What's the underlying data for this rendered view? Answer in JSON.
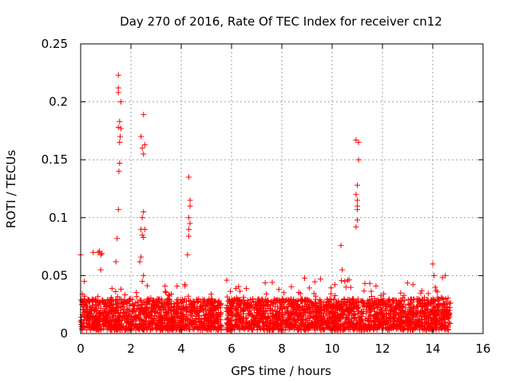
{
  "chart_data": {
    "type": "scatter",
    "title": "Day 270 of 2016, Rate Of TEC Index for receiver cn12",
    "xlabel": "GPS time / hours",
    "ylabel": "ROTI / TECUs",
    "xlim": [
      0,
      16
    ],
    "ylim": [
      0,
      0.25
    ],
    "xticks": [
      "0",
      "2",
      "4",
      "6",
      "8",
      "10",
      "12",
      "14",
      "16"
    ],
    "xtick_values": [
      0,
      2,
      4,
      6,
      8,
      10,
      12,
      14,
      16
    ],
    "yticks": [
      "0",
      "0.05",
      "0.1",
      "0.15",
      "0.2",
      "0.25"
    ],
    "ytick_values": [
      0,
      0.05,
      0.1,
      0.15,
      0.2,
      0.25
    ],
    "grid": true,
    "marker": "+",
    "color": "#ff0000",
    "series": [
      {
        "name": "ROTI",
        "x": [
          0.0,
          0.15,
          0.5,
          0.7,
          0.75,
          0.8,
          0.85,
          0.8,
          1.4,
          1.45,
          1.5,
          1.52,
          1.55,
          1.55,
          1.57,
          1.6,
          1.5,
          1.55,
          1.6,
          1.5,
          1.5,
          1.5,
          2.35,
          2.4,
          2.45,
          2.5,
          2.45,
          2.5,
          2.55,
          2.5,
          2.4,
          2.45,
          2.55,
          2.5,
          2.4,
          2.45,
          2.5,
          4.25,
          4.3,
          4.3,
          4.35,
          4.35,
          4.3,
          4.3,
          4.35,
          10.35,
          10.4,
          10.5,
          10.55,
          10.95,
          11.0,
          11.0,
          11.0,
          10.95,
          11.0,
          11.05,
          11.05,
          10.95,
          11.0,
          14.0,
          14.1,
          14.05,
          14.5
        ],
        "y": [
          0.068,
          0.045,
          0.07,
          0.07,
          0.071,
          0.068,
          0.069,
          0.055,
          0.062,
          0.082,
          0.107,
          0.14,
          0.147,
          0.165,
          0.17,
          0.177,
          0.178,
          0.183,
          0.2,
          0.208,
          0.212,
          0.223,
          0.062,
          0.09,
          0.1,
          0.105,
          0.085,
          0.083,
          0.09,
          0.155,
          0.17,
          0.16,
          0.163,
          0.189,
          0.066,
          0.045,
          0.05,
          0.068,
          0.084,
          0.1,
          0.11,
          0.115,
          0.135,
          0.09,
          0.095,
          0.076,
          0.055,
          0.045,
          0.04,
          0.092,
          0.098,
          0.11,
          0.115,
          0.12,
          0.128,
          0.15,
          0.165,
          0.167,
          0.107,
          0.06,
          0.04,
          0.05,
          0.05
        ]
      }
    ],
    "dense_band": {
      "x_ranges": [
        [
          0.0,
          5.6
        ],
        [
          5.8,
          14.7
        ]
      ],
      "y_floor": 0.003,
      "y_typical_max": 0.03,
      "y_peak_max": 0.05,
      "note": "continuous dense cloud of ROTI samples between ~0.003 and ~0.03 TECU/min with bursts to ~0.05"
    }
  }
}
